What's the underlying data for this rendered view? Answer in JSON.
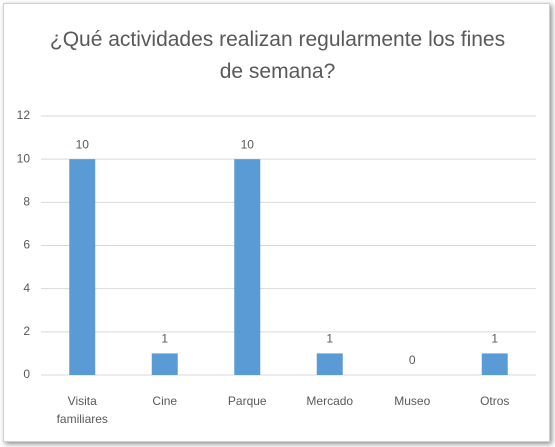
{
  "chart_data": {
    "type": "bar",
    "title": "¿Qué actividades realizan regularmente los fines de semana?",
    "categories": [
      "Visita familiares",
      "Cine",
      "Parque",
      "Mercado",
      "Museo",
      "Otros"
    ],
    "values": [
      10,
      1,
      10,
      1,
      0,
      1
    ],
    "color": "#5b9bd5",
    "ylim": [
      0,
      12
    ],
    "yticks": [
      0,
      2,
      4,
      6,
      8,
      10,
      12
    ],
    "grid": true
  }
}
